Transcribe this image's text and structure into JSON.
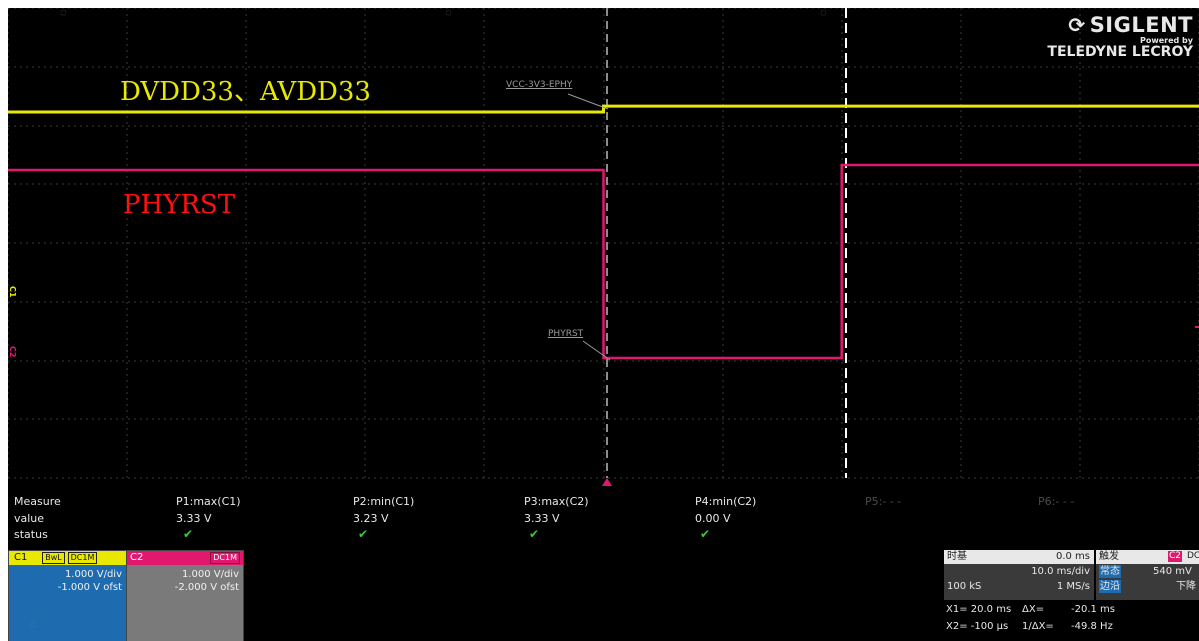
{
  "brand": {
    "name": "SIGLENT",
    "powered_by": "Powered by",
    "partner": "TELEDYNE LECROY"
  },
  "annotations": {
    "supply_label": "DVDD33、AVDD33",
    "reset_label": "PHYRST"
  },
  "colors": {
    "c1": "#e8e800",
    "c2": "#e0196e",
    "annotation_supply": "#e8e800",
    "annotation_reset": "#ff1010",
    "c1_panel": "#1e6bb0",
    "c2_panel": "#7a7a7a"
  },
  "waveform_labels": {
    "c1": "VCC-3V3-EPHY",
    "c2": "PHYRST"
  },
  "channel_markers": {
    "c1": "C1",
    "c2": "C2"
  },
  "measure": {
    "row_labels": [
      "Measure",
      "value",
      "status"
    ],
    "params": [
      {
        "name": "P1:max(C1)",
        "value": "3.33 V",
        "status": "ok"
      },
      {
        "name": "P2:min(C1)",
        "value": "3.23 V",
        "status": "ok"
      },
      {
        "name": "P3:max(C2)",
        "value": "3.33 V",
        "status": "ok"
      },
      {
        "name": "P4:min(C2)",
        "value": "0.00 V",
        "status": "ok"
      },
      {
        "name": "P5:- - -",
        "value": "",
        "status": ""
      },
      {
        "name": "P6:- - -",
        "value": "",
        "status": ""
      }
    ]
  },
  "channels": [
    {
      "name": "C1",
      "tags": [
        "BwL",
        "DC1M"
      ],
      "scale": "1.000 V/div",
      "offset": "-1.000 V ofst"
    },
    {
      "name": "C2",
      "tags": [
        "DC1M"
      ],
      "scale": "1.000 V/div",
      "offset": "-2.000 V ofst"
    }
  ],
  "timebase": {
    "title": "时基",
    "delay": "0.0 ms",
    "scale": "10.0 ms/div",
    "points": "100 kS",
    "rate": "1 MS/s"
  },
  "trigger": {
    "title": "触发",
    "source": "C2",
    "coupling": "DC",
    "mode_label": "常态",
    "level": "540 mV",
    "type_label": "边沿",
    "slope": "下降"
  },
  "cursors": {
    "x1": "X1= 20.0 ms",
    "dx": "ΔX=",
    "dx_value": "-20.1 ms",
    "x2": "X2= -100 μs",
    "inv_dx": "1/ΔX=",
    "inv_dx_value": "-49.8 Hz"
  },
  "signals": {
    "c1_high_v": 3.33,
    "c1_low_v": 3.23,
    "c2_high_v": 3.33,
    "c2_low_v": 0.0,
    "c2_fall_time_ms": 0.0,
    "c2_rise_time_ms": 20.0,
    "c1_step_time_ms": 0.0
  }
}
